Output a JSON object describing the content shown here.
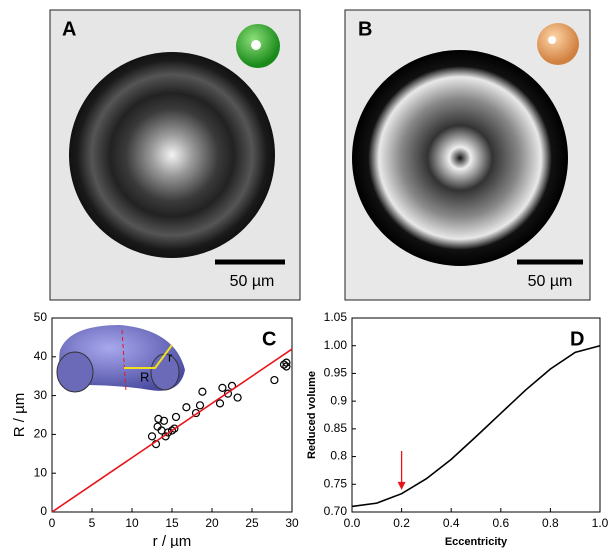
{
  "panels": [
    {
      "label": "A",
      "scale_bar": "50 µm"
    },
    {
      "label": "B",
      "scale_bar": "50 µm"
    }
  ],
  "chart_data": [
    {
      "type": "scatter",
      "panel_label": "C",
      "xlabel": "r / µm",
      "ylabel": "R / µm",
      "inset_labels": [
        "R",
        "r"
      ],
      "xlim": [
        0,
        30
      ],
      "ylim": [
        0,
        50
      ],
      "xticks": [
        0,
        5,
        10,
        15,
        20,
        25,
        30
      ],
      "yticks": [
        0,
        10,
        20,
        30,
        40,
        50
      ],
      "series": [
        {
          "style": "markers",
          "color": "#000000",
          "x": [
            12.5,
            13,
            13.2,
            13.3,
            13.7,
            14,
            14.2,
            14.5,
            15,
            15.3,
            15.5,
            16.8,
            18,
            18.5,
            18.8,
            21,
            21.3,
            22,
            22.5,
            23.2,
            27.8,
            29,
            29.3,
            29.3
          ],
          "values": [
            19.5,
            17.5,
            22,
            24,
            21,
            23.5,
            19.5,
            20.5,
            21,
            21.5,
            24.5,
            27,
            25.5,
            27.5,
            31,
            28,
            32,
            30.5,
            32.5,
            29.5,
            34,
            38,
            37.5,
            38.5
          ]
        },
        {
          "style": "line",
          "color": "#e8141b",
          "x": [
            0,
            30
          ],
          "values": [
            0,
            42
          ]
        }
      ]
    },
    {
      "type": "line",
      "panel_label": "D",
      "xlabel": "Eccentricity",
      "ylabel": "Reduced volume",
      "xlim": [
        0,
        1
      ],
      "ylim": [
        0.7,
        1.05
      ],
      "xticks": [
        {
          "value": 0,
          "label": "0.0"
        },
        0.2,
        0.4,
        0.6,
        0.8,
        {
          "value": 1,
          "label": "1.0"
        }
      ],
      "yticks": [
        {
          "value": 0.7,
          "label": "0.70"
        },
        0.75,
        0.8,
        0.85,
        0.9,
        0.95,
        {
          "value": 1,
          "label": "1.00"
        },
        1.05
      ],
      "x": [
        0,
        0.1,
        0.2,
        0.3,
        0.4,
        0.5,
        0.6,
        0.7,
        0.8,
        0.9,
        1.0
      ],
      "series": [
        {
          "color": "#000000",
          "values": [
            0.71,
            0.716,
            0.733,
            0.76,
            0.795,
            0.836,
            0.878,
            0.92,
            0.958,
            0.988,
            1.0
          ]
        }
      ],
      "arrow": {
        "x": 0.2,
        "from": 0.81,
        "to": 0.74,
        "color": "#e8141b"
      }
    }
  ]
}
